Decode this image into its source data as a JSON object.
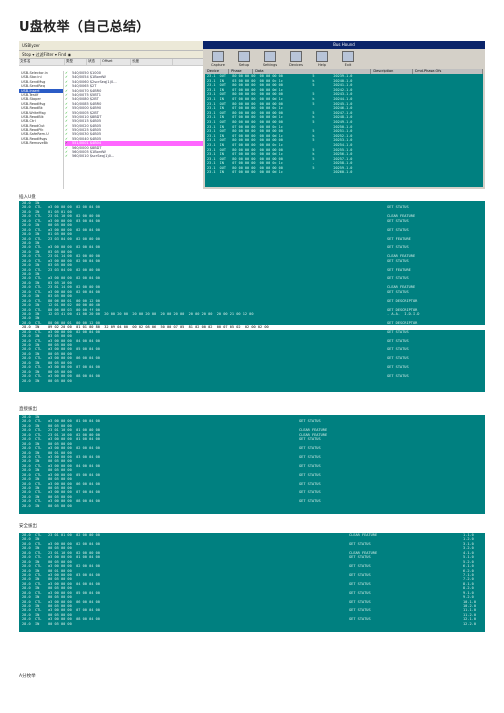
{
  "doc": {
    "title": "U盘枚举（自己总结）",
    "captions": [
      "插入U盘",
      "直接拔出",
      "安全拔出",
      "A分枚举"
    ]
  },
  "shot1": {
    "left_window": {
      "menu": "USBlyzer",
      "toolbar": "Stop ▾   过滤Filter ▾  Find  ◉",
      "columns": [
        "文件名",
        "类型",
        "状态",
        "Offset",
        "长度"
      ],
      "tree": [
        "USB-Selector.in",
        "USB-Stor.ini",
        "USB-SendMsg",
        "USB-SendReq",
        "USB-Insert",
        "USB-TestIf",
        "USB-Stoper",
        "USB-ReadMsg",
        "USB-ReadBk",
        "USB-WriteMsg",
        "USB-ReadBlk",
        "USB-Ctrl",
        "USB-ReadOut",
        "USB-ReadPlk",
        "USB-SafeRem.U",
        "USB-ReadMsgs",
        "USB-RemoveBk"
      ],
      "rows": [
        {
          "ok": "✓",
          "text": "540/0050   $1000"
        },
        {
          "ok": "✓",
          "text": "540/0054   $1BordW"
        },
        {
          "ok": "✓",
          "text": "540/0060   $2scrSeq(1)0..."
        },
        {
          "ok": "✓",
          "text": "540/0065   $2T"
        },
        {
          "ok": "✓",
          "text": "540/0070   $4BR0"
        },
        {
          "ok": "✓",
          "text": "540/0075   $5BT1"
        },
        {
          "ok": "✓",
          "text": "540/0080   $2BT"
        },
        {
          "ok": "✓",
          "text": "540/0085   $4BR0"
        },
        {
          "ok": "✓",
          "text": "550/0000   $4B90"
        },
        {
          "ok": "✓",
          "text": "550/0005   $2BT"
        },
        {
          "ok": "✓",
          "text": "550/0010   $8BDT"
        },
        {
          "ok": "✓",
          "text": "550/0015   $4B05"
        },
        {
          "ok": "✓",
          "text": "550/0020   $4B05"
        },
        {
          "ok": "✓",
          "text": "550/0025   $4B05"
        },
        {
          "ok": "✓",
          "text": "550/0030   $4B05"
        },
        {
          "ok": "✓",
          "text": "550/0040   $4B05"
        },
        {
          "ok": "✓",
          "text": "551/0001   $4B04"
        },
        {
          "ok": "✓",
          "text": "560/0000   $8BDT"
        },
        {
          "ok": "✓",
          "text": "560/0005   $1BordW"
        },
        {
          "ok": "✓",
          "text": "560/0010   $scrSeq(1)0..."
        }
      ],
      "highlight_row": 16
    },
    "right_window": {
      "title": "Bus Hound",
      "icons": [
        "Capture",
        "Setup",
        "Settings",
        "Devices",
        "Help",
        "Exit"
      ],
      "columns": [
        "Device",
        "Phase",
        "Data",
        "Description",
        "Cmd.Phase.Ofs"
      ],
      "rows": [
        "23.1  OUT   80 00 00 00  00 00 00 00              5         20239.1.0",
        "23.1  IN    03 00 00 00  00 00 0c 1c              k         20240.1.0",
        "23.1  OUT   80 00 00 00  00 00 00 00              5         20241.1.0",
        "23.1  IN    07 00 00 00  00 00 0d 1c                        20242.1.0",
        "23.1  OUT   80 00 00 00  00 00 00 00              5         20243.1.0",
        "23.1  IN    07 00 00 00  00 00 0d 1c              k         20244.1.0",
        "23.1  OUT   80 00 00 00  00 00 00 00              5         20245.1.0",
        "23.1  IN    07 00 00 00  00 00 0c 1c                        20246.1.0",
        "23.1  OUT   80 00 00 00  00 00 00 00              5         20247.1.0",
        "23.1  IN    07 00 00 00  00 00 0d 1c              k         20248.1.0",
        "23.1  OUT   80 00 00 00  00 00 00 00              5         20249.1.0",
        "23.1  IN    07 00 00 00  00 00 0c 1c                        20250.1.0",
        "23.1  OUT   80 00 00 00  00 00 00 00              5         20251.1.0",
        "23.1  IN    07 00 00 00  00 00 0d 1c              k         20252.1.0",
        "23.1  OUT   80 00 00 00  00 00 00 00              5         20253.1.0",
        "23.1  IN    07 00 00 00  00 00 0c 1c                        20254.1.0",
        "23.1  OUT   80 00 00 00  00 00 00 00              5         20255.1.0",
        "23.1  IN    07 00 00 00  00 00 0d 1c              k         20256.1.0",
        "23.1  OUT   80 00 00 00  00 00 00 00              5         20257.1.0",
        "23.1  IN    07 00 00 00  00 00 0c 1c              .         20258.1.0",
        "23.1  OUT   80 00 00 00  00 00 00 00              5         20259.1.0",
        "23.1  IN    07 00 00 00  00 00 0d 1c                        20260.1.0"
      ]
    }
  },
  "trace1": {
    "rows": [
      {
        "t": "28.0  IN",
        "s": "",
        "n": ""
      },
      {
        "t": "28.0  CTL   a3 00 00 00  02 00 04 00",
        "s": "GET STATUS",
        "n": ""
      },
      {
        "t": "28.0  IN    01 05 01 00",
        "s": "",
        "n": ""
      },
      {
        "t": "28.0  CTL   23 01 10 00  02 00 00 00",
        "s": "CLEAR FEATURE",
        "n": ""
      },
      {
        "t": "28.0  CTL   a3 00 00 00  03 00 04 00",
        "s": "GET STATUS",
        "n": ""
      },
      {
        "t": "28.0  IN    00 05 00 00",
        "s": "",
        "n": ""
      },
      {
        "t": "28.0  CTL   a3 00 00 00  02 00 04 00",
        "s": "GET STATUS",
        "n": ""
      },
      {
        "t": "28.0  IN    01 05 00 00",
        "s": "",
        "n": ""
      },
      {
        "t": "28.0  CTL   23 03 04 00  02 00 00 00",
        "s": "SET FEATURE",
        "n": ""
      },
      {
        "t": "28.0  IN",
        "s": "",
        "n": ""
      },
      {
        "t": "28.0  CTL   a3 00 00 00  02 00 04 00",
        "s": "GET STATUS",
        "n": ""
      },
      {
        "t": "28.0  IN    03 05 00 00",
        "s": "",
        "n": ""
      },
      {
        "t": "28.0  CTL   23 01 14 00  02 00 00 00",
        "s": "CLEAR FEATURE",
        "n": ""
      },
      {
        "t": "28.0  CTL   a3 00 00 00  02 00 04 00",
        "s": "GET STATUS",
        "n": ""
      },
      {
        "t": "28.0  IN    03 05 00 00",
        "s": "",
        "n": ""
      },
      {
        "t": "28.0  CTL   23 03 04 00  02 00 00 00",
        "s": "SET FEATURE",
        "n": ""
      },
      {
        "t": "28.0  IN",
        "s": "",
        "n": ""
      },
      {
        "t": "28.0  CTL   a3 00 00 00  02 00 04 00",
        "s": "GET STATUS",
        "n": ""
      },
      {
        "t": "28.0  IN    03 05 10 00",
        "s": "",
        "n": ""
      },
      {
        "t": "28.0  CTL   23 01 14 00  02 00 00 00",
        "s": "CLEAR FEATURE",
        "n": ""
      },
      {
        "t": "28.0  CTL   a3 00 00 00  02 00 04 00",
        "s": "GET STATUS",
        "n": ""
      },
      {
        "t": "28.0  IN    03 05 00 00",
        "s": "",
        "n": ""
      },
      {
        "t": "28.0  CTL   80 06 00 01  00 00 12 00",
        "s": "GET DESCRIPTOR",
        "n": ""
      },
      {
        "t": "28.0  IN    12 01 00 02  00 00 00 40",
        "s": "",
        "n": ""
      },
      {
        "t": "28.0  CTL   80 06 00 03  00 00 ff 00",
        "s": "GET DESCRIPTOR",
        "n": ""
      },
      {
        "t": "28.0  IN    12 03 41 00  41 00 20 00  20 00 20 00  20 00 20 00  20 00 20 00  20 00 20 00  20 00 21 00 12 00",
        "s": ". A.A.  I.D.I.D",
        "n": ""
      },
      {
        "t": "28.0  IN",
        "s": "",
        "n": ""
      },
      {
        "t": "28.0  CTL   80 06 00 01  00 00 12 00",
        "s": "GET DESCRIPTOR",
        "n": ""
      },
      {
        "t": "28.0  IN    09 02 20 00  01 01 00 80  32 09 04 00  00 02 08 06  50 00 07 05  81 02 00 02  00 07 05 02  02 00 02 00",
        "s": "",
        "n": ""
      },
      {
        "t": "28.0  CTL   a3 00 00 00  02 00 04 00",
        "s": "GET STATUS",
        "n": ""
      },
      {
        "t": "28.0  IN    03 05 00 00",
        "s": "",
        "n": ""
      },
      {
        "t": "28.0  CTL   a3 00 00 00  04 00 04 00",
        "s": "GET STATUS",
        "n": ""
      },
      {
        "t": "28.0  IN    00 05 00 00",
        "s": "",
        "n": ""
      },
      {
        "t": "28.0  CTL   a3 00 00 00  05 00 04 00",
        "s": "GET STATUS",
        "n": ""
      },
      {
        "t": "28.0  IN    00 05 00 00",
        "s": "",
        "n": ""
      },
      {
        "t": "28.0  CTL   a3 00 00 00  06 00 04 00",
        "s": "GET STATUS",
        "n": ""
      },
      {
        "t": "28.0  IN    00 05 00 00",
        "s": "",
        "n": ""
      },
      {
        "t": "28.0  CTL   a3 00 00 00  07 00 04 00",
        "s": "GET STATUS",
        "n": ""
      },
      {
        "t": "28.0  IN    00 05 00 00",
        "s": "",
        "n": ""
      },
      {
        "t": "28.0  CTL   a3 00 00 00  08 00 04 00",
        "s": "GET STATUS",
        "n": ""
      },
      {
        "t": "28.0  IN    00 05 00 00",
        "s": "",
        "n": ""
      }
    ],
    "selected_row": 28
  },
  "trace2": {
    "rows": [
      {
        "t": "28.0  IN",
        "s": ""
      },
      {
        "t": "28.0  CTL   a3 00 00 00  01 00 04 00",
        "s": "GET STATUS"
      },
      {
        "t": "28.0  IN    00 05 00 00",
        "s": ""
      },
      {
        "t": "28.0  CTL   23 01 10 00  01 00 00 00",
        "s": "CLEAR FEATURE"
      },
      {
        "t": "28.0  CTL   23 01 10 00  02 00 00 00",
        "s": "CLEAR FEATURE"
      },
      {
        "t": "28.0  CTL   a3 00 00 00  01 00 04 00",
        "s": "GET STATUS"
      },
      {
        "t": "28.0  IN    00 05 00 00",
        "s": ""
      },
      {
        "t": "28.0  CTL   a3 00 00 00  02 00 04 00",
        "s": "GET STATUS"
      },
      {
        "t": "28.0  IN    00 01 00 00",
        "s": ""
      },
      {
        "t": "28.0  CTL   a3 00 00 00  03 00 04 00",
        "s": "GET STATUS"
      },
      {
        "t": "28.0  IN    00 05 00 00",
        "s": ""
      },
      {
        "t": "28.0  CTL   a3 00 00 00  04 00 04 00",
        "s": "GET STATUS"
      },
      {
        "t": "28.0  IN    00 05 00 00",
        "s": ""
      },
      {
        "t": "28.0  CTL   a3 00 00 00  05 00 04 00",
        "s": "GET STATUS"
      },
      {
        "t": "28.0  IN    00 05 00 00",
        "s": ""
      },
      {
        "t": "28.0  CTL   a3 00 00 00  06 00 04 00",
        "s": "GET STATUS"
      },
      {
        "t": "28.0  IN    00 05 00 00",
        "s": ""
      },
      {
        "t": "28.0  CTL   a3 00 00 00  07 00 04 00",
        "s": "GET STATUS"
      },
      {
        "t": "28.0  IN    00 05 00 00",
        "s": ""
      },
      {
        "t": "28.0  CTL   a3 00 00 00  08 00 04 00",
        "s": "GET STATUS"
      },
      {
        "t": "28.0  IN    00 05 00 00",
        "s": ""
      }
    ]
  },
  "trace3": {
    "rows": [
      {
        "t": "28.0  CTL   23 01 01 00  02 00 00 00",
        "s": "CLEAR FEATURE",
        "n": "1.1.0"
      },
      {
        "t": "28.0  IN",
        "s": "",
        "n": "1.2.0"
      },
      {
        "t": "28.0  CTL   a3 00 00 00  02 00 04 00",
        "s": "GET STATUS",
        "n": "3.1.0"
      },
      {
        "t": "28.0  IN    00 05 00 00",
        "s": "",
        "n": "3.2.0"
      },
      {
        "t": "28.0  CTL   23 01 10 00  02 00 00 00",
        "s": "CLEAR FEATURE",
        "n": "4.1.0"
      },
      {
        "t": "28.0  CTL   a3 00 00 00  01 00 04 00",
        "s": "GET STATUS",
        "n": "5.1.0"
      },
      {
        "t": "28.0  IN    00 05 00 00",
        "s": "",
        "n": "5.2.0"
      },
      {
        "t": "28.0  CTL   a3 00 00 00  02 00 04 00",
        "s": "GET STATUS",
        "n": "6.1.0"
      },
      {
        "t": "28.0  IN    00 01 00 00",
        "s": "",
        "n": "6.2.0"
      },
      {
        "t": "28.0  CTL   a3 00 00 00  03 00 04 00",
        "s": "GET STATUS",
        "n": "7.1.0"
      },
      {
        "t": "28.0  IN    00 05 00 00",
        "s": "",
        "n": "7.2.0"
      },
      {
        "t": "28.0  CTL   a3 00 00 00  04 00 04 00",
        "s": "GET STATUS",
        "n": "8.1.0"
      },
      {
        "t": "28.0  IN    00 05 00 00",
        "s": "",
        "n": "8.2.0"
      },
      {
        "t": "28.0  CTL   a3 00 00 00  05 00 04 00",
        "s": "GET STATUS",
        "n": "9.1.0"
      },
      {
        "t": "28.0  IN    00 05 00 00",
        "s": "",
        "n": "9.2.0"
      },
      {
        "t": "28.0  CTL   a3 00 00 00  06 00 04 00",
        "s": "GET STATUS",
        "n": "10.1.0"
      },
      {
        "t": "28.0  IN    00 05 00 00",
        "s": "",
        "n": "10.2.0"
      },
      {
        "t": "28.0  CTL   a3 00 00 00  07 00 04 00",
        "s": "GET STATUS",
        "n": "11.1.0"
      },
      {
        "t": "28.0  IN    00 05 00 00",
        "s": "",
        "n": "11.2.0"
      },
      {
        "t": "28.0  CTL   a3 00 00 00  08 00 04 00",
        "s": "GET STATUS",
        "n": "12.1.0"
      },
      {
        "t": "28.0  IN    00 05 00 00",
        "s": "",
        "n": "12.2.0"
      }
    ]
  }
}
